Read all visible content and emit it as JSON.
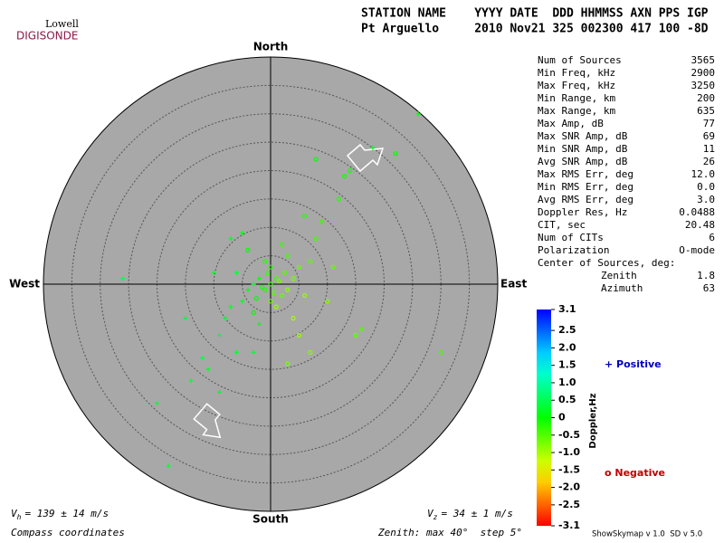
{
  "logo": {
    "top": "Lowell",
    "bottom": "DIGISONDE"
  },
  "header": {
    "row1": "STATION NAME    YYYY DATE  DDD HHMMSS AXN PPS IGP",
    "row2": "Pt Arguello     2010 Nov21 325 002300 417 100 -8D"
  },
  "compass": {
    "north": "North",
    "south": "South",
    "east": "East",
    "west": "West"
  },
  "stats": [
    [
      "Num of Sources",
      "3565"
    ],
    [
      "Min Freq, kHz",
      "2900"
    ],
    [
      "Max Freq, kHz",
      "3250"
    ],
    [
      "Min Range, km",
      "200"
    ],
    [
      "Max Range, km",
      "635"
    ],
    [
      "Max Amp, dB",
      "77"
    ],
    [
      "Max SNR Amp, dB",
      "69"
    ],
    [
      "Min SNR Amp, dB",
      "11"
    ],
    [
      "Avg SNR Amp, dB",
      "26"
    ],
    [
      "Max RMS Err, deg",
      "12.0"
    ],
    [
      "Min RMS Err, deg",
      "0.0"
    ],
    [
      "Avg RMS Err, deg",
      "3.0"
    ],
    [
      "Doppler Res, Hz",
      "0.0488"
    ],
    [
      "CIT, sec",
      "20.48"
    ],
    [
      "Num of CITs",
      "6"
    ],
    [
      "Polarization",
      "O-mode"
    ]
  ],
  "center": {
    "label": "Center of Sources, deg:",
    "rows": [
      [
        "Zenith",
        "1.8"
      ],
      [
        "Azimuth",
        "63"
      ]
    ]
  },
  "colorbar": {
    "label": "Doppler,Hz",
    "ticks": [
      3.1,
      2.5,
      {
        "value": 2,
        "label": "2.0"
      },
      1.5,
      {
        "value": 1,
        "label": "1.0"
      },
      0.5,
      0,
      -0.5,
      {
        "value": -1,
        "label": "-1.0"
      },
      -1.5,
      {
        "value": -2,
        "label": "-2.0"
      },
      -2.5,
      -3.1
    ]
  },
  "legend": {
    "positive": "+ Positive",
    "negative": "o Negative"
  },
  "footer": {
    "vh": {
      "symbol": "V",
      "sub": "h",
      "text": "= 139 ± 14 m/s"
    },
    "vz": {
      "symbol": "V",
      "sub": "z",
      "text": "= 34 ± 1 m/s"
    },
    "coords": "Compass coordinates",
    "zenith": "Zenith: max 40°  step 5°",
    "version": "ShowSkymap v 1.0  SD v 5.0"
  },
  "skymap": {
    "zenith_max": 40,
    "zenith_step": 5,
    "points": {
      "east": [
        0,
        1,
        -1,
        2,
        -2,
        0.5,
        -0.5,
        1.5,
        -1.5,
        3,
        -3,
        0,
        0,
        2.5,
        -2.5,
        4,
        -4,
        1,
        -1,
        5,
        -5,
        3,
        -3,
        6,
        -6,
        2,
        -2,
        7,
        -7,
        8,
        -8,
        4,
        -4,
        9,
        -9,
        10,
        6,
        -6,
        12,
        -10,
        14,
        -12,
        5,
        -5,
        15,
        -14,
        11,
        7,
        -7,
        18,
        -15,
        3,
        13,
        -11,
        8,
        16,
        -3,
        22,
        30,
        -26,
        -18,
        -9,
        26,
        -20
      ],
      "north": [
        0,
        1,
        -1,
        -2,
        1,
        -1.5,
        2,
        0.5,
        -0.5,
        -1,
        0,
        3,
        -3,
        2,
        -2.5,
        1,
        -1,
        -4,
        4,
        3,
        -3,
        5,
        -5,
        -2,
        2,
        7,
        -7,
        4,
        -4,
        8,
        -6,
        -6,
        6,
        11,
        -9,
        -3,
        12,
        -12,
        15,
        2,
        20,
        -13,
        -9,
        9,
        -9,
        -17,
        3,
        -12,
        8,
        24,
        -6,
        -14,
        19,
        -15,
        22,
        -8,
        -12,
        23,
        -12,
        1,
        -32,
        -19,
        30,
        -21
      ],
      "doppler": [
        -0.3,
        -0.4,
        -0.2,
        -0.6,
        0.1,
        -0.5,
        -0.3,
        -0.7,
        -0.1,
        -0.8,
        0.2,
        -0.2,
        -0.6,
        -0.5,
        0,
        -0.7,
        0.1,
        -0.9,
        -0.2,
        -0.6,
        0.2,
        -0.4,
        0,
        -0.9,
        0.3,
        -0.3,
        0.1,
        -0.5,
        0.2,
        -0.4,
        0.3,
        -1,
        0,
        -0.3,
        0.4,
        -0.8,
        -0.2,
        0.3,
        -0.2,
        0.2,
        -0.1,
        0.4,
        -0.9,
        0.1,
        -0.6,
        0.3,
        -0.6,
        -0.8,
        0.1,
        0.2,
        0.3,
        -0.7,
        -0.1,
        0.2,
        0,
        -0.5,
        0.2,
        0,
        -0.4,
        0.4,
        0.3,
        0.2,
        0.1,
        0.4
      ]
    }
  }
}
